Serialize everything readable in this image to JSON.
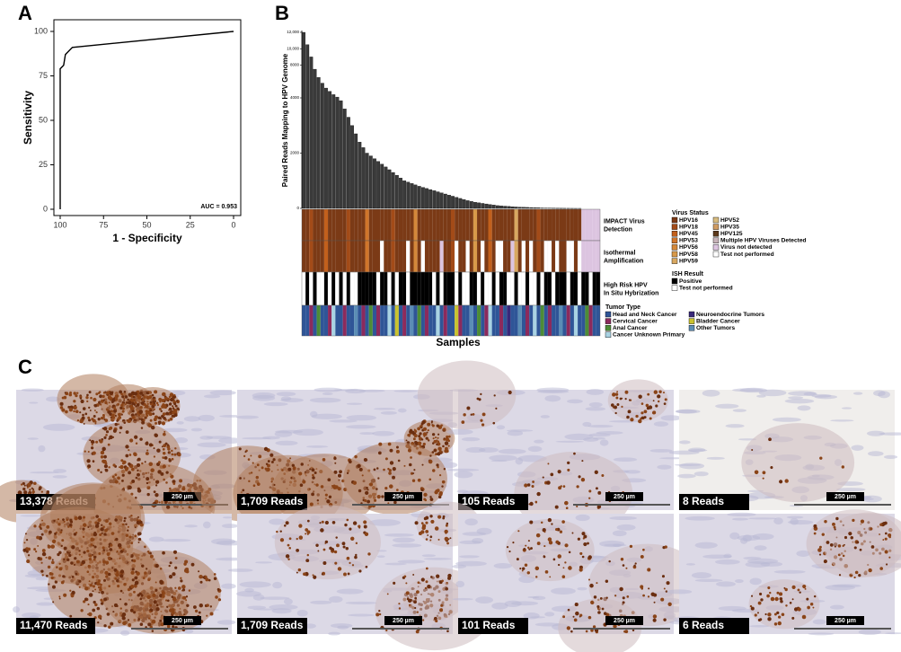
{
  "panels": {
    "a": "A",
    "b": "B",
    "c": "C"
  },
  "chart_data": [
    {
      "type": "line",
      "x_label": "1 - Specificity",
      "y_label": "Sensitivity",
      "x": [
        100,
        100,
        98,
        97,
        93,
        0
      ],
      "values": [
        0,
        79,
        81,
        87,
        91,
        100
      ],
      "xlim": [
        100,
        0
      ],
      "ylim": [
        0,
        100
      ],
      "xticks": [
        100,
        75,
        50,
        25,
        0
      ],
      "yticks": [
        0,
        25,
        50,
        75,
        100
      ],
      "annotation": "AUC = 0.953",
      "color": "#000000"
    },
    {
      "type": "bar",
      "y_label": "Paired Reads Mapping to HPV Genome",
      "x_label": "Samples",
      "color": "#3a3a3a",
      "ylim": [
        0,
        12000
      ],
      "y_break": 4000,
      "yticks": [
        0,
        2000,
        4000,
        8000,
        {
          "value": 10000,
          "label": "10,000"
        },
        {
          "value": 12000,
          "label": "12,000"
        }
      ],
      "values": [
        12000,
        10500,
        9000,
        7500,
        6500,
        5800,
        5200,
        4800,
        4400,
        4100,
        3900,
        3600,
        3300,
        3000,
        2700,
        2400,
        2200,
        2000,
        1900,
        1800,
        1700,
        1600,
        1500,
        1400,
        1300,
        1200,
        1100,
        1000,
        950,
        900,
        850,
        800,
        760,
        720,
        680,
        640,
        600,
        560,
        520,
        480,
        440,
        400,
        360,
        320,
        280,
        250,
        220,
        200,
        180,
        160,
        140,
        120,
        100,
        90,
        80,
        70,
        60,
        50,
        45,
        40,
        35,
        30,
        25,
        20,
        15,
        12,
        10,
        8,
        6,
        5,
        4,
        3,
        2,
        1,
        1,
        null,
        null,
        null,
        null,
        null
      ],
      "tracks": [
        {
          "name": [
            "IMPACT Virus",
            "Detection"
          ],
          "legend": 0,
          "values": [
            0,
            0,
            1,
            0,
            0,
            0,
            2,
            0,
            0,
            0,
            0,
            0,
            1,
            0,
            0,
            0,
            0,
            3,
            0,
            0,
            0,
            0,
            0,
            0,
            1,
            0,
            0,
            0,
            0,
            0,
            4,
            0,
            0,
            0,
            0,
            0,
            0,
            0,
            0,
            0,
            1,
            0,
            0,
            0,
            0,
            0,
            5,
            0,
            0,
            0,
            2,
            0,
            0,
            0,
            0,
            0,
            0,
            6,
            0,
            0,
            0,
            0,
            0,
            1,
            0,
            0,
            0,
            0,
            0,
            0,
            0,
            0,
            0,
            0,
            0,
            11,
            11,
            11,
            11,
            11
          ]
        },
        {
          "name": [
            "Isothermal",
            "Amplification"
          ],
          "legend": 0,
          "values": [
            0,
            0,
            1,
            0,
            0,
            0,
            2,
            0,
            0,
            0,
            0,
            0,
            1,
            0,
            0,
            0,
            0,
            3,
            0,
            0,
            0,
            12,
            0,
            0,
            1,
            0,
            0,
            0,
            12,
            0,
            4,
            0,
            12,
            0,
            0,
            0,
            0,
            11,
            0,
            0,
            1,
            12,
            0,
            0,
            12,
            0,
            5,
            0,
            12,
            0,
            2,
            0,
            12,
            12,
            0,
            0,
            11,
            6,
            0,
            12,
            0,
            12,
            0,
            1,
            0,
            12,
            12,
            0,
            12,
            0,
            0,
            12,
            12,
            0,
            12,
            11,
            11,
            11,
            11,
            11
          ]
        },
        {
          "name": [
            "High Risk HPV",
            "In Situ Hybrization"
          ],
          "legend": 1,
          "values": [
            1,
            0,
            1,
            0,
            1,
            1,
            0,
            1,
            0,
            1,
            0,
            1,
            0,
            1,
            1,
            0,
            0,
            0,
            0,
            0,
            1,
            0,
            0,
            1,
            0,
            1,
            0,
            0,
            1,
            0,
            0,
            0,
            0,
            0,
            0,
            1,
            0,
            1,
            0,
            0,
            0,
            1,
            0,
            1,
            1,
            0,
            0,
            1,
            0,
            1,
            1,
            0,
            1,
            0,
            0,
            1,
            1,
            0,
            1,
            1,
            0,
            1,
            1,
            0,
            1,
            0,
            0,
            1,
            0,
            0,
            0,
            1,
            0,
            0,
            1,
            0,
            0,
            1,
            0,
            0
          ]
        },
        {
          "name": [],
          "legend": 2,
          "values": [
            0,
            0,
            1,
            0,
            2,
            0,
            0,
            1,
            3,
            0,
            0,
            1,
            0,
            0,
            6,
            0,
            1,
            0,
            2,
            0,
            1,
            0,
            0,
            3,
            0,
            5,
            0,
            1,
            0,
            6,
            0,
            2,
            0,
            1,
            0,
            0,
            3,
            0,
            1,
            0,
            0,
            5,
            1,
            0,
            0,
            6,
            0,
            2,
            0,
            1,
            3,
            0,
            0,
            1,
            0,
            4,
            0,
            0,
            6,
            0,
            1,
            0,
            3,
            0,
            2,
            0,
            1,
            0,
            0,
            6,
            0,
            1,
            0,
            3,
            0,
            0,
            2,
            1,
            0,
            0
          ]
        }
      ],
      "legends": [
        {
          "title": "Virus Status",
          "items": [
            {
              "name": "HPV16",
              "color": "#7b3a16"
            },
            {
              "name": "HPV18",
              "color": "#a34b18"
            },
            {
              "name": "HPV45",
              "color": "#c2601c"
            },
            {
              "name": "HPV53",
              "color": "#d0752a"
            },
            {
              "name": "HPV56",
              "color": "#d4883a"
            },
            {
              "name": "HPV58",
              "color": "#d89a4a"
            },
            {
              "name": "HPV59",
              "color": "#d8a860"
            },
            {
              "name": "HPV52",
              "color": "#d8bc80"
            },
            {
              "name": "HPV35",
              "color": "#cf9c62"
            },
            {
              "name": "HPV125",
              "color": "#5c3a1c"
            },
            {
              "name": "Multiple HPV Viruses Detected",
              "color": "#c7b3b9"
            },
            {
              "name": "Virus not detected",
              "color": "#dcc4e0"
            },
            {
              "name": "Test not performed",
              "color": "#ffffff"
            }
          ]
        },
        {
          "title": "ISH Result",
          "items": [
            {
              "name": "Positive",
              "color": "#000000"
            },
            {
              "name": "Test not performed",
              "color": "#ffffff"
            }
          ]
        },
        {
          "title": "Tumor Type",
          "items": [
            {
              "name": "Head and Neck Cancer",
              "color": "#2f5597"
            },
            {
              "name": "Cervical Cancer",
              "color": "#8c2a5c"
            },
            {
              "name": "Anal Cancer",
              "color": "#4d8c36"
            },
            {
              "name": "Cancer Unknown Primary",
              "color": "#a9d3e3"
            },
            {
              "name": "Neuroendocrine Tumors",
              "color": "#38287a"
            },
            {
              "name": "Bladder Cancer",
              "color": "#c9c22e"
            },
            {
              "name": "Other Tumors",
              "color": "#5b8db5"
            }
          ]
        }
      ]
    }
  ],
  "images": [
    {
      "label": "13,378 Reads",
      "scale": "250 µm"
    },
    {
      "label": "1,709 Reads",
      "scale": "250 µm"
    },
    {
      "label": "105 Reads",
      "scale": "250 µm"
    },
    {
      "label": "8 Reads",
      "scale": "250 µm"
    },
    {
      "label": "11,470 Reads",
      "scale": "250 µm"
    },
    {
      "label": "1,709 Reads",
      "scale": "250 µm"
    },
    {
      "label": "101 Reads",
      "scale": "250 µm"
    },
    {
      "label": "6 Reads",
      "scale": "250 µm"
    }
  ]
}
